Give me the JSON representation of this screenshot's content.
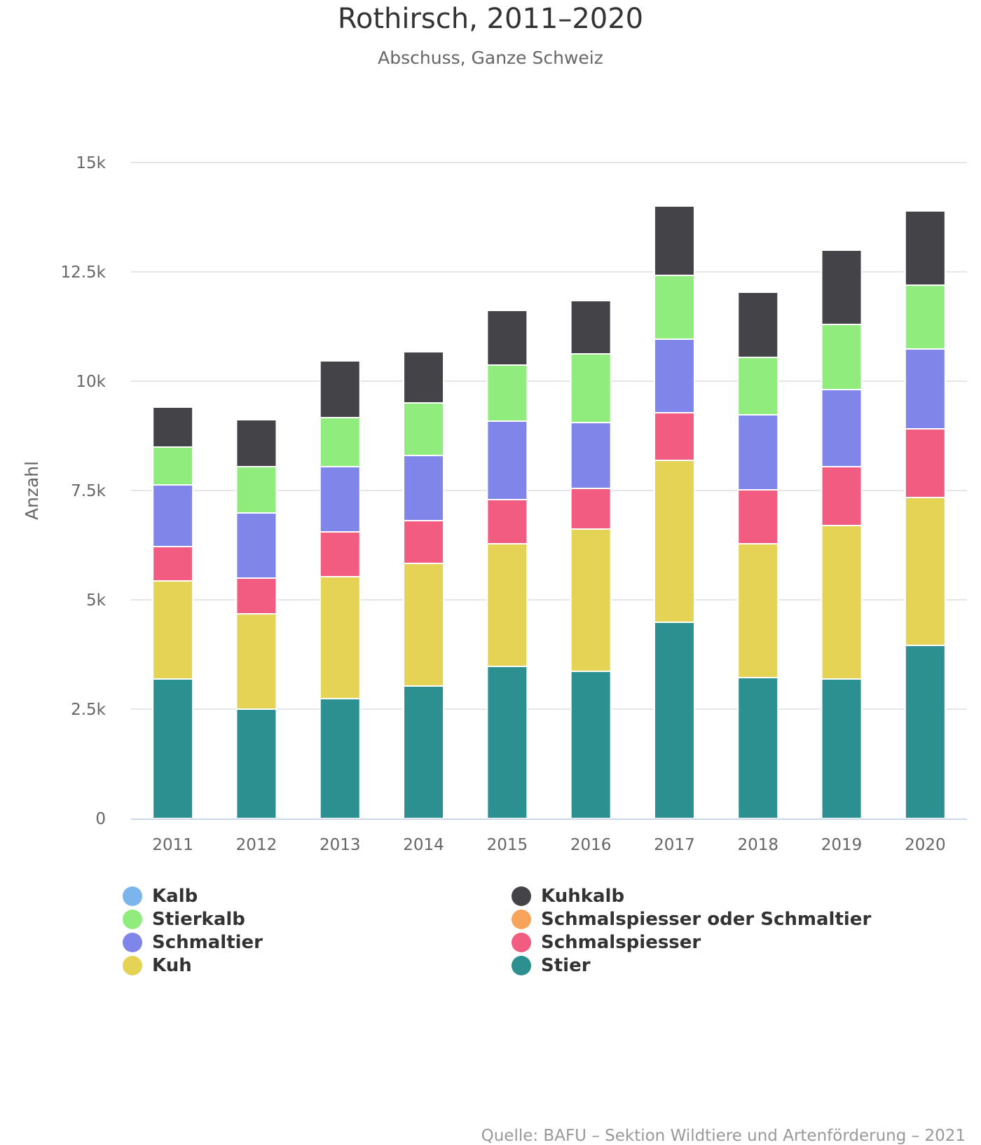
{
  "chart_data": {
    "type": "bar",
    "stacked": true,
    "title": "Rothirsch, 2011–2020",
    "subtitle": "Abschuss, Ganze Schweiz",
    "xlabel": "",
    "ylabel": "Anzahl",
    "ylim": [
      0,
      15000
    ],
    "yticks": [
      0,
      2500,
      5000,
      7500,
      10000,
      12500,
      15000
    ],
    "ytick_labels": [
      "0",
      "2.5k",
      "5k",
      "7.5k",
      "10k",
      "12.5k",
      "15k"
    ],
    "grid": true,
    "legend_position": "bottom",
    "categories": [
      "2011",
      "2012",
      "2013",
      "2014",
      "2015",
      "2016",
      "2017",
      "2018",
      "2019",
      "2020"
    ],
    "series": [
      {
        "name": "Kalb",
        "color": "#7cb5ec",
        "values": [
          0,
          0,
          0,
          0,
          0,
          0,
          0,
          0,
          0,
          0
        ]
      },
      {
        "name": "Kuhkalb",
        "color": "#434348",
        "values": [
          913,
          1074,
          1298,
          1170,
          1250,
          1218,
          1586,
          1490,
          1699,
          1698
        ]
      },
      {
        "name": "Stierkalb",
        "color": "#90ed7d",
        "values": [
          866,
          1058,
          1122,
          1202,
          1282,
          1571,
          1458,
          1314,
          1490,
          1459
        ]
      },
      {
        "name": "Schmalspiesser oder Schmaltier",
        "color": "#f7a35c",
        "values": [
          0,
          0,
          0,
          0,
          0,
          0,
          0,
          0,
          0,
          0
        ]
      },
      {
        "name": "Schmaltier",
        "color": "#8085e9",
        "values": [
          1410,
          1490,
          1491,
          1490,
          1795,
          1506,
          1683,
          1715,
          1763,
          1827
        ]
      },
      {
        "name": "Schmalspiesser",
        "color": "#f15c80",
        "values": [
          785,
          818,
          1025,
          978,
          1010,
          929,
          1090,
          1234,
          1346,
          1570
        ]
      },
      {
        "name": "Kuh",
        "color": "#e4d354",
        "values": [
          2243,
          2179,
          2789,
          2804,
          2804,
          3254,
          3702,
          3061,
          3510,
          3382
        ]
      },
      {
        "name": "Stier",
        "color": "#2b908f",
        "values": [
          3190,
          2500,
          2740,
          3029,
          3478,
          3365,
          4487,
          3221,
          3189,
          3958
        ]
      }
    ],
    "legend_order": [
      "Kalb",
      "Stierkalb",
      "Schmaltier",
      "Kuh",
      "Kuhkalb",
      "Schmalspiesser oder Schmaltier",
      "Schmalspiesser",
      "Stier"
    ]
  },
  "credits": "Quelle: BAFU – Sektion Wildtiere und Artenförderung – 2021"
}
